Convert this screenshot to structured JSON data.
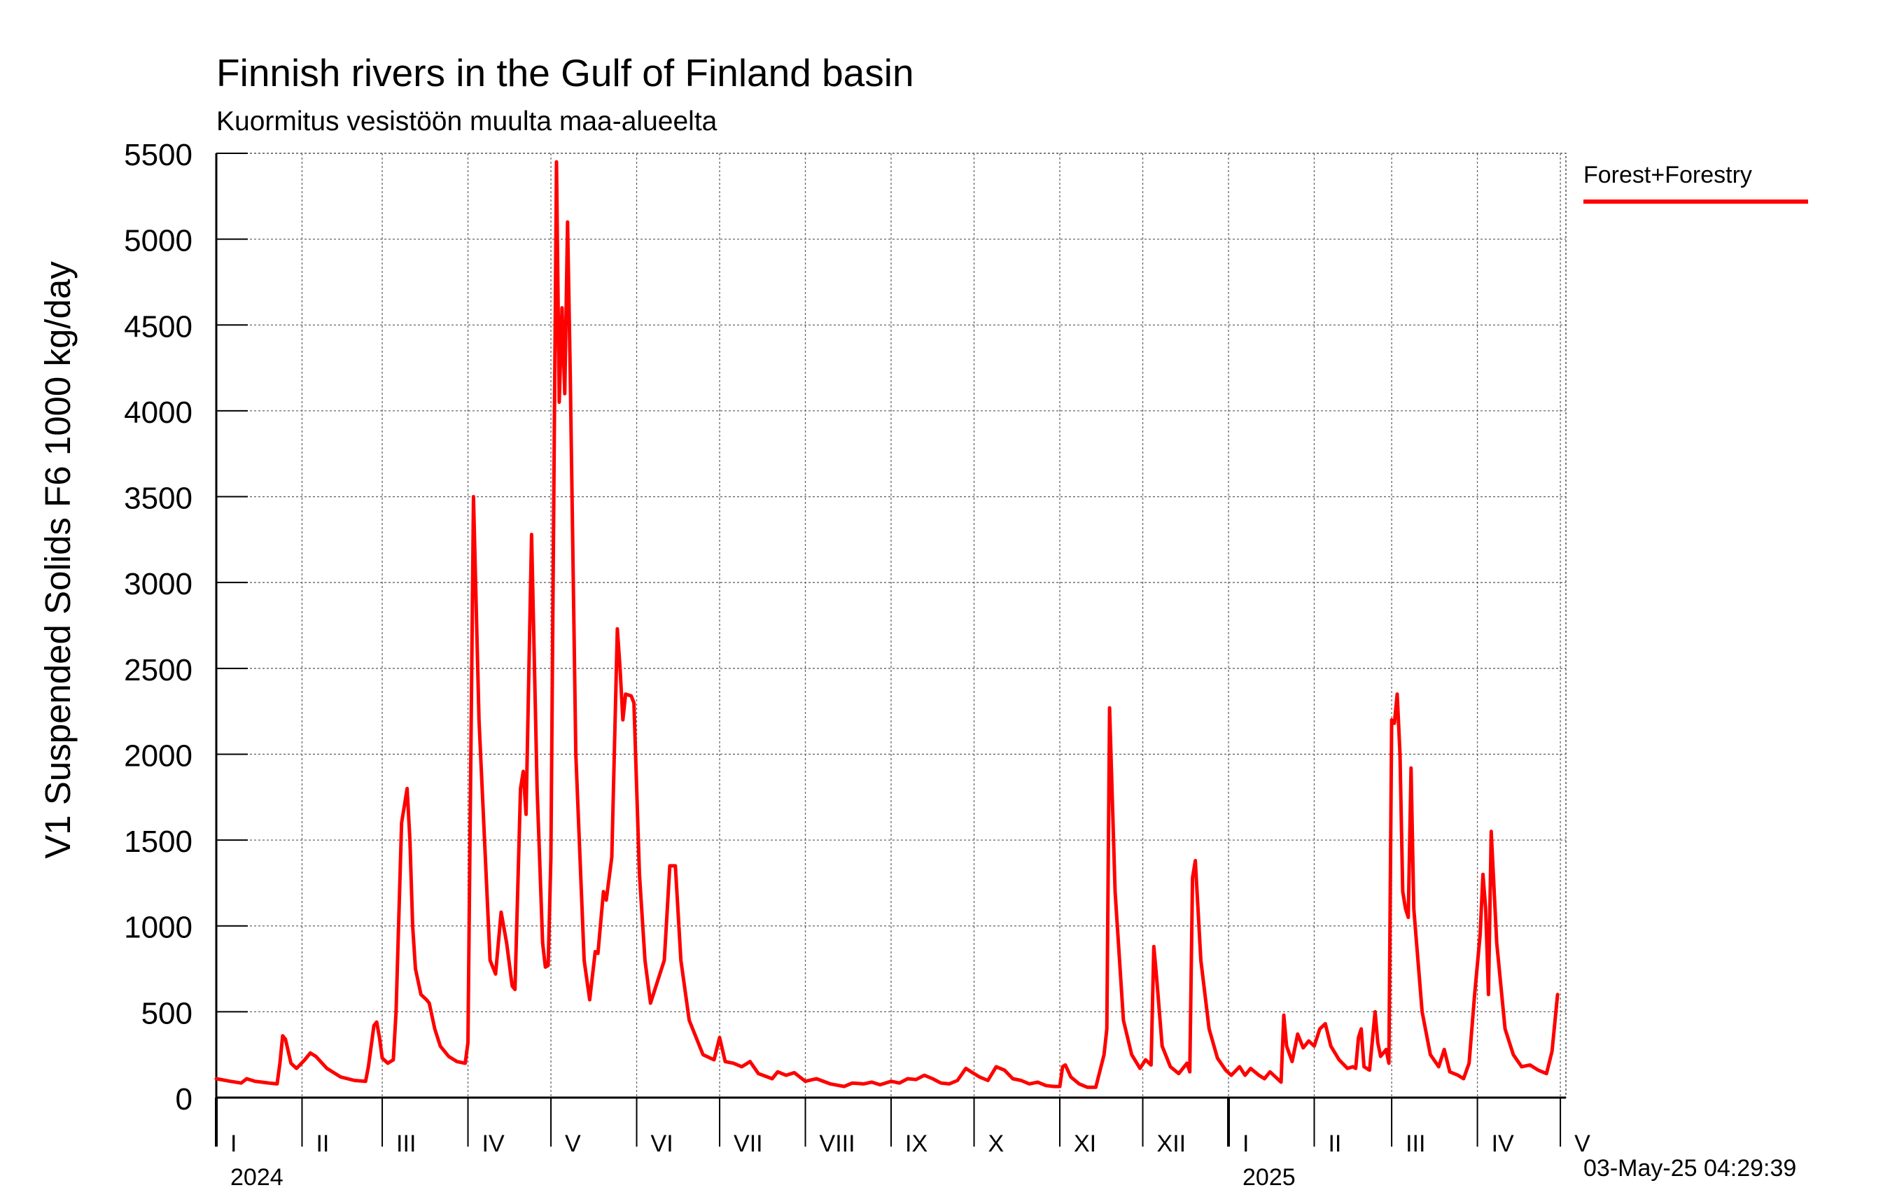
{
  "title": "Finnish rivers in the Gulf of Finland basin",
  "subtitle": "Kuormitus vesistöön muulta maa-alueelta",
  "timestamp": "03-May-25 04:29:39",
  "legend": {
    "label": "Forest+Forestry",
    "color": "#ff0000"
  },
  "chart_data": {
    "type": "line",
    "title": "Finnish rivers in the Gulf of Finland basin",
    "subtitle": "Kuormitus vesistöön muulta maa-alueelta",
    "ylabel": "V1 Suspended Solids F6 1000 kg/day",
    "xlabel": "",
    "ylim": [
      0,
      5500
    ],
    "yticks": [
      0,
      500,
      1000,
      1500,
      2000,
      2500,
      3000,
      3500,
      4000,
      4500,
      5000,
      5500
    ],
    "xlim": [
      "2024-01-01",
      "2025-05-03"
    ],
    "grid": true,
    "legend_position": "right",
    "months": [
      {
        "label": "I",
        "date": "2024-01-01"
      },
      {
        "label": "II",
        "date": "2024-02-01"
      },
      {
        "label": "III",
        "date": "2024-03-01"
      },
      {
        "label": "IV",
        "date": "2024-04-01"
      },
      {
        "label": "V",
        "date": "2024-05-01"
      },
      {
        "label": "VI",
        "date": "2024-06-01"
      },
      {
        "label": "VII",
        "date": "2024-07-01"
      },
      {
        "label": "VIII",
        "date": "2024-08-01"
      },
      {
        "label": "IX",
        "date": "2024-09-01"
      },
      {
        "label": "X",
        "date": "2024-10-01"
      },
      {
        "label": "XI",
        "date": "2024-11-01"
      },
      {
        "label": "XII",
        "date": "2024-12-01"
      },
      {
        "label": "I",
        "date": "2025-01-01"
      },
      {
        "label": "II",
        "date": "2025-02-01"
      },
      {
        "label": "III",
        "date": "2025-03-01"
      },
      {
        "label": "IV",
        "date": "2025-04-01"
      },
      {
        "label": "V",
        "date": "2025-05-01"
      }
    ],
    "years": [
      {
        "label": "2024",
        "date": "2024-01-01"
      },
      {
        "label": "2025",
        "date": "2025-01-01"
      }
    ],
    "series": [
      {
        "name": "Forest+Forestry",
        "color": "#ff0000",
        "points": [
          [
            "2024-01-01",
            110
          ],
          [
            "2024-01-06",
            95
          ],
          [
            "2024-01-10",
            85
          ],
          [
            "2024-01-12",
            110
          ],
          [
            "2024-01-15",
            95
          ],
          [
            "2024-01-20",
            85
          ],
          [
            "2024-01-23",
            80
          ],
          [
            "2024-01-24",
            200
          ],
          [
            "2024-01-25",
            360
          ],
          [
            "2024-01-26",
            340
          ],
          [
            "2024-01-28",
            200
          ],
          [
            "2024-01-30",
            170
          ],
          [
            "2024-02-02",
            220
          ],
          [
            "2024-02-04",
            260
          ],
          [
            "2024-02-06",
            240
          ],
          [
            "2024-02-10",
            170
          ],
          [
            "2024-02-15",
            120
          ],
          [
            "2024-02-20",
            100
          ],
          [
            "2024-02-24",
            95
          ],
          [
            "2024-02-25",
            180
          ],
          [
            "2024-02-27",
            420
          ],
          [
            "2024-02-28",
            440
          ],
          [
            "2024-02-29",
            350
          ],
          [
            "2024-03-01",
            230
          ],
          [
            "2024-03-03",
            200
          ],
          [
            "2024-03-05",
            220
          ],
          [
            "2024-03-06",
            500
          ],
          [
            "2024-03-08",
            1600
          ],
          [
            "2024-03-09",
            1700
          ],
          [
            "2024-03-10",
            1800
          ],
          [
            "2024-03-11",
            1500
          ],
          [
            "2024-03-12",
            1000
          ],
          [
            "2024-03-13",
            750
          ],
          [
            "2024-03-15",
            600
          ],
          [
            "2024-03-17",
            570
          ],
          [
            "2024-03-18",
            550
          ],
          [
            "2024-03-20",
            400
          ],
          [
            "2024-03-22",
            300
          ],
          [
            "2024-03-25",
            240
          ],
          [
            "2024-03-28",
            210
          ],
          [
            "2024-03-31",
            200
          ],
          [
            "2024-04-01",
            320
          ],
          [
            "2024-04-03",
            3500
          ],
          [
            "2024-04-05",
            2200
          ],
          [
            "2024-04-07",
            1500
          ],
          [
            "2024-04-09",
            800
          ],
          [
            "2024-04-11",
            720
          ],
          [
            "2024-04-13",
            1080
          ],
          [
            "2024-04-15",
            900
          ],
          [
            "2024-04-17",
            650
          ],
          [
            "2024-04-18",
            630
          ],
          [
            "2024-04-20",
            1800
          ],
          [
            "2024-04-21",
            1900
          ],
          [
            "2024-04-22",
            1650
          ],
          [
            "2024-04-24",
            3280
          ],
          [
            "2024-04-26",
            1800
          ],
          [
            "2024-04-28",
            900
          ],
          [
            "2024-04-29",
            760
          ],
          [
            "2024-04-30",
            770
          ],
          [
            "2024-05-01",
            1400
          ],
          [
            "2024-05-03",
            5450
          ],
          [
            "2024-05-04",
            4050
          ],
          [
            "2024-05-05",
            4600
          ],
          [
            "2024-05-06",
            4100
          ],
          [
            "2024-05-07",
            5100
          ],
          [
            "2024-05-08",
            4200
          ],
          [
            "2024-05-10",
            2000
          ],
          [
            "2024-05-13",
            800
          ],
          [
            "2024-05-15",
            570
          ],
          [
            "2024-05-17",
            850
          ],
          [
            "2024-05-18",
            840
          ],
          [
            "2024-05-20",
            1200
          ],
          [
            "2024-05-21",
            1150
          ],
          [
            "2024-05-23",
            1400
          ],
          [
            "2024-05-25",
            2730
          ],
          [
            "2024-05-26",
            2500
          ],
          [
            "2024-05-27",
            2200
          ],
          [
            "2024-05-28",
            2350
          ],
          [
            "2024-05-30",
            2340
          ],
          [
            "2024-05-31",
            2300
          ],
          [
            "2024-06-02",
            1300
          ],
          [
            "2024-06-04",
            800
          ],
          [
            "2024-06-06",
            550
          ],
          [
            "2024-06-09",
            700
          ],
          [
            "2024-06-11",
            800
          ],
          [
            "2024-06-13",
            1350
          ],
          [
            "2024-06-15",
            1350
          ],
          [
            "2024-06-17",
            800
          ],
          [
            "2024-06-20",
            450
          ],
          [
            "2024-06-25",
            250
          ],
          [
            "2024-06-29",
            220
          ],
          [
            "2024-07-01",
            350
          ],
          [
            "2024-07-03",
            210
          ],
          [
            "2024-07-06",
            200
          ],
          [
            "2024-07-09",
            180
          ],
          [
            "2024-07-12",
            210
          ],
          [
            "2024-07-15",
            140
          ],
          [
            "2024-07-20",
            110
          ],
          [
            "2024-07-22",
            150
          ],
          [
            "2024-07-25",
            130
          ],
          [
            "2024-07-28",
            145
          ],
          [
            "2024-08-01",
            95
          ],
          [
            "2024-08-05",
            110
          ],
          [
            "2024-08-10",
            80
          ],
          [
            "2024-08-15",
            65
          ],
          [
            "2024-08-18",
            85
          ],
          [
            "2024-08-22",
            80
          ],
          [
            "2024-08-25",
            90
          ],
          [
            "2024-08-28",
            75
          ],
          [
            "2024-09-01",
            95
          ],
          [
            "2024-09-04",
            85
          ],
          [
            "2024-09-07",
            110
          ],
          [
            "2024-09-10",
            105
          ],
          [
            "2024-09-13",
            130
          ],
          [
            "2024-09-16",
            110
          ],
          [
            "2024-09-19",
            85
          ],
          [
            "2024-09-22",
            80
          ],
          [
            "2024-09-25",
            100
          ],
          [
            "2024-09-28",
            170
          ],
          [
            "2024-10-01",
            140
          ],
          [
            "2024-10-03",
            120
          ],
          [
            "2024-10-06",
            100
          ],
          [
            "2024-10-09",
            180
          ],
          [
            "2024-10-12",
            160
          ],
          [
            "2024-10-15",
            110
          ],
          [
            "2024-10-18",
            100
          ],
          [
            "2024-10-21",
            80
          ],
          [
            "2024-10-24",
            90
          ],
          [
            "2024-10-27",
            70
          ],
          [
            "2024-10-30",
            65
          ],
          [
            "2024-11-01",
            65
          ],
          [
            "2024-11-02",
            180
          ],
          [
            "2024-11-03",
            190
          ],
          [
            "2024-11-05",
            120
          ],
          [
            "2024-11-08",
            80
          ],
          [
            "2024-11-11",
            60
          ],
          [
            "2024-11-14",
            60
          ],
          [
            "2024-11-17",
            250
          ],
          [
            "2024-11-18",
            400
          ],
          [
            "2024-11-19",
            2270
          ],
          [
            "2024-11-21",
            1200
          ],
          [
            "2024-11-24",
            450
          ],
          [
            "2024-11-27",
            250
          ],
          [
            "2024-11-30",
            170
          ],
          [
            "2024-12-02",
            220
          ],
          [
            "2024-12-04",
            190
          ],
          [
            "2024-12-05",
            880
          ],
          [
            "2024-12-06",
            700
          ],
          [
            "2024-12-08",
            300
          ],
          [
            "2024-12-11",
            180
          ],
          [
            "2024-12-14",
            140
          ],
          [
            "2024-12-17",
            200
          ],
          [
            "2024-12-18",
            150
          ],
          [
            "2024-12-19",
            1280
          ],
          [
            "2024-12-20",
            1380
          ],
          [
            "2024-12-22",
            800
          ],
          [
            "2024-12-25",
            400
          ],
          [
            "2024-12-28",
            230
          ],
          [
            "2024-12-31",
            160
          ],
          [
            "2025-01-02",
            130
          ],
          [
            "2025-01-05",
            180
          ],
          [
            "2025-01-07",
            130
          ],
          [
            "2025-01-09",
            170
          ],
          [
            "2025-01-12",
            130
          ],
          [
            "2025-01-14",
            110
          ],
          [
            "2025-01-16",
            150
          ],
          [
            "2025-01-18",
            120
          ],
          [
            "2025-01-20",
            90
          ],
          [
            "2025-01-21",
            480
          ],
          [
            "2025-01-22",
            300
          ],
          [
            "2025-01-24",
            210
          ],
          [
            "2025-01-26",
            370
          ],
          [
            "2025-01-28",
            290
          ],
          [
            "2025-01-30",
            330
          ],
          [
            "2025-02-01",
            300
          ],
          [
            "2025-02-03",
            400
          ],
          [
            "2025-02-05",
            430
          ],
          [
            "2025-02-07",
            300
          ],
          [
            "2025-02-10",
            220
          ],
          [
            "2025-02-13",
            170
          ],
          [
            "2025-02-15",
            180
          ],
          [
            "2025-02-16",
            170
          ],
          [
            "2025-02-17",
            350
          ],
          [
            "2025-02-18",
            400
          ],
          [
            "2025-02-19",
            180
          ],
          [
            "2025-02-21",
            160
          ],
          [
            "2025-02-23",
            500
          ],
          [
            "2025-02-24",
            320
          ],
          [
            "2025-02-25",
            240
          ],
          [
            "2025-02-27",
            280
          ],
          [
            "2025-02-28",
            200
          ],
          [
            "2025-03-01",
            2200
          ],
          [
            "2025-03-02",
            2180
          ],
          [
            "2025-03-03",
            2350
          ],
          [
            "2025-03-04",
            2000
          ],
          [
            "2025-03-05",
            1200
          ],
          [
            "2025-03-06",
            1100
          ],
          [
            "2025-03-07",
            1050
          ],
          [
            "2025-03-08",
            1920
          ],
          [
            "2025-03-09",
            1100
          ],
          [
            "2025-03-12",
            500
          ],
          [
            "2025-03-15",
            250
          ],
          [
            "2025-03-18",
            180
          ],
          [
            "2025-03-20",
            280
          ],
          [
            "2025-03-22",
            150
          ],
          [
            "2025-03-25",
            130
          ],
          [
            "2025-03-27",
            110
          ],
          [
            "2025-03-29",
            200
          ],
          [
            "2025-03-31",
            600
          ],
          [
            "2025-04-02",
            950
          ],
          [
            "2025-04-03",
            1300
          ],
          [
            "2025-04-04",
            1100
          ],
          [
            "2025-04-05",
            600
          ],
          [
            "2025-04-06",
            1550
          ],
          [
            "2025-04-08",
            900
          ],
          [
            "2025-04-11",
            400
          ],
          [
            "2025-04-14",
            250
          ],
          [
            "2025-04-17",
            180
          ],
          [
            "2025-04-20",
            190
          ],
          [
            "2025-04-23",
            160
          ],
          [
            "2025-04-26",
            140
          ],
          [
            "2025-04-28",
            270
          ],
          [
            "2025-04-30",
            600
          ]
        ]
      }
    ]
  }
}
